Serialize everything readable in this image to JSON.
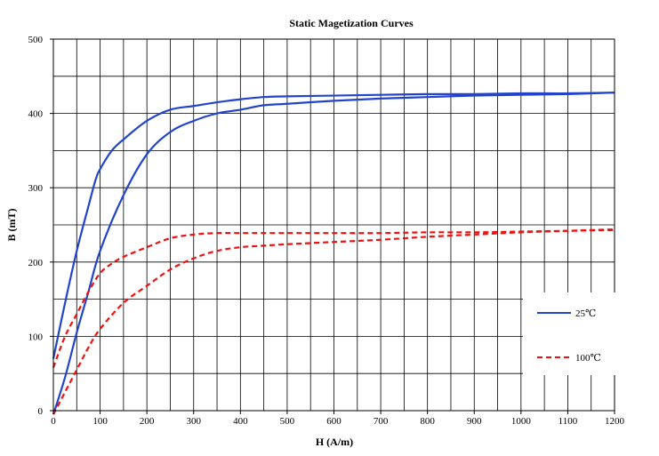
{
  "chart_data": {
    "type": "line",
    "title": "Static Magetization Curves",
    "xlabel": "H (A/m)",
    "ylabel": "B (mT)",
    "xlim": [
      0,
      1200
    ],
    "ylim": [
      0,
      500
    ],
    "x_ticks": [
      0,
      100,
      200,
      300,
      400,
      500,
      600,
      700,
      800,
      900,
      1000,
      1100,
      1200
    ],
    "y_ticks": [
      0,
      100,
      200,
      300,
      400,
      500
    ],
    "x_grid_step": 50,
    "y_grid_step": 50,
    "grid": true,
    "legend_position": "right",
    "series": [
      {
        "name": "25℃",
        "color": "#2244cc",
        "dash": "solid",
        "upper": [
          [
            0,
            70
          ],
          [
            25,
            145
          ],
          [
            50,
            215
          ],
          [
            75,
            275
          ],
          [
            90,
            310
          ],
          [
            100,
            325
          ],
          [
            125,
            350
          ],
          [
            150,
            365
          ],
          [
            200,
            390
          ],
          [
            250,
            405
          ],
          [
            300,
            410
          ],
          [
            350,
            415
          ],
          [
            400,
            419
          ],
          [
            450,
            422
          ],
          [
            500,
            423
          ],
          [
            600,
            424
          ],
          [
            700,
            425
          ],
          [
            800,
            426
          ],
          [
            900,
            426
          ],
          [
            1000,
            427
          ],
          [
            1100,
            427
          ],
          [
            1200,
            428
          ]
        ],
        "lower": [
          [
            0,
            -5
          ],
          [
            25,
            45
          ],
          [
            50,
            105
          ],
          [
            75,
            160
          ],
          [
            100,
            215
          ],
          [
            150,
            290
          ],
          [
            200,
            345
          ],
          [
            250,
            375
          ],
          [
            300,
            390
          ],
          [
            350,
            400
          ],
          [
            400,
            405
          ],
          [
            450,
            411
          ],
          [
            500,
            413
          ],
          [
            600,
            417
          ],
          [
            700,
            420
          ],
          [
            800,
            422
          ],
          [
            900,
            424
          ],
          [
            1000,
            425
          ],
          [
            1100,
            426
          ],
          [
            1200,
            428
          ]
        ]
      },
      {
        "name": "100℃",
        "color": "#ee1111",
        "dash": "dashed",
        "upper": [
          [
            0,
            58
          ],
          [
            25,
            100
          ],
          [
            50,
            130
          ],
          [
            75,
            160
          ],
          [
            100,
            185
          ],
          [
            125,
            198
          ],
          [
            150,
            207
          ],
          [
            200,
            220
          ],
          [
            250,
            232
          ],
          [
            300,
            237
          ],
          [
            350,
            239
          ],
          [
            400,
            239
          ],
          [
            500,
            239
          ],
          [
            600,
            239
          ],
          [
            700,
            239
          ],
          [
            800,
            240
          ],
          [
            900,
            240
          ],
          [
            1000,
            241
          ],
          [
            1100,
            242
          ],
          [
            1200,
            243
          ]
        ],
        "lower": [
          [
            0,
            -5
          ],
          [
            25,
            25
          ],
          [
            50,
            55
          ],
          [
            75,
            85
          ],
          [
            100,
            110
          ],
          [
            150,
            145
          ],
          [
            200,
            168
          ],
          [
            250,
            190
          ],
          [
            300,
            205
          ],
          [
            350,
            215
          ],
          [
            400,
            220
          ],
          [
            450,
            222
          ],
          [
            500,
            224
          ],
          [
            600,
            227
          ],
          [
            700,
            230
          ],
          [
            800,
            234
          ],
          [
            900,
            237
          ],
          [
            1000,
            240
          ],
          [
            1100,
            242
          ],
          [
            1200,
            244
          ]
        ]
      }
    ]
  }
}
